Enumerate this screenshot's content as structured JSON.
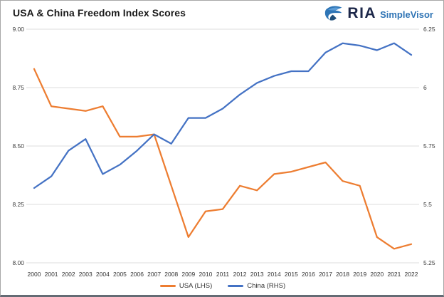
{
  "header": {
    "title": "USA & China Freedom Index Scores",
    "logo": {
      "brand": "RIA",
      "product": "SimpleVisor"
    }
  },
  "chart_data": {
    "type": "line",
    "title": "USA & China Freedom Index Scores",
    "x": [
      2000,
      2001,
      2002,
      2003,
      2004,
      2005,
      2006,
      2007,
      2008,
      2009,
      2010,
      2011,
      2012,
      2013,
      2014,
      2015,
      2016,
      2017,
      2018,
      2019,
      2020,
      2021,
      2022
    ],
    "series": [
      {
        "name": "USA (LHS)",
        "axis": "left",
        "color": "#ED7D31",
        "values": [
          8.83,
          8.67,
          8.66,
          8.65,
          8.67,
          8.54,
          8.54,
          8.55,
          8.33,
          8.11,
          8.22,
          8.23,
          8.33,
          8.31,
          8.38,
          8.39,
          8.41,
          8.43,
          8.35,
          8.33,
          8.11,
          8.06,
          8.08
        ]
      },
      {
        "name": "China (RHS)",
        "axis": "right",
        "color": "#4472C4",
        "values": [
          5.57,
          5.62,
          5.73,
          5.78,
          5.63,
          5.67,
          5.73,
          5.8,
          5.76,
          5.87,
          5.87,
          5.91,
          5.97,
          6.02,
          6.05,
          6.07,
          6.07,
          6.15,
          6.19,
          6.18,
          6.16,
          6.19,
          6.14
        ]
      }
    ],
    "left_axis": {
      "ticks": [
        "9.00",
        "8.75",
        "8.50",
        "8.25",
        "8.00"
      ],
      "min": 8.0,
      "max": 9.0
    },
    "right_axis": {
      "ticks": [
        "6.25",
        "6",
        "5.75",
        "5.5",
        "5.25"
      ],
      "min": 5.25,
      "max": 6.25
    },
    "grid": true,
    "legend_position": "bottom",
    "gridline_color": "#dcdcdc",
    "tick_label_color": "#3c3c3c"
  },
  "legend": {
    "items": [
      {
        "label": "USA (LHS)",
        "color": "#ED7D31"
      },
      {
        "label": "China (RHS)",
        "color": "#4472C4"
      }
    ]
  }
}
